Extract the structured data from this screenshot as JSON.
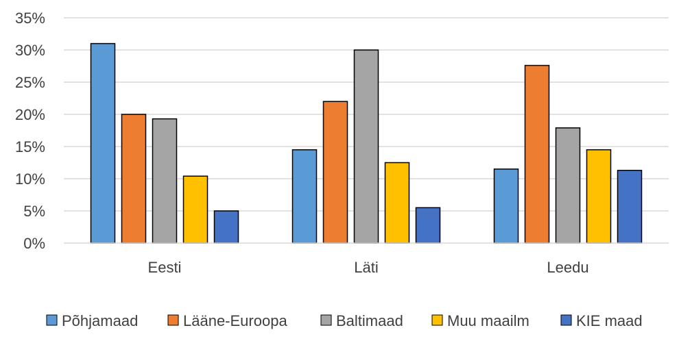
{
  "chart_data": {
    "type": "bar",
    "categories": [
      "Eesti",
      "Läti",
      "Leedu"
    ],
    "series": [
      {
        "name": "Põhjamaad",
        "color": "#5B9BD5",
        "values": [
          0.31,
          0.145,
          0.115
        ]
      },
      {
        "name": "Lääne-Euroopa",
        "color": "#ED7D31",
        "values": [
          0.2,
          0.22,
          0.276
        ]
      },
      {
        "name": "Baltimaad",
        "color": "#A5A5A5",
        "values": [
          0.193,
          0.3,
          0.179
        ]
      },
      {
        "name": "Muu maailm",
        "color": "#FFC000",
        "values": [
          0.104,
          0.125,
          0.145
        ]
      },
      {
        "name": "KIE maad",
        "color": "#4472C4",
        "values": [
          0.05,
          0.055,
          0.113
        ]
      }
    ],
    "ylim": [
      0,
      0.35
    ],
    "yticks": [
      "0%",
      "5%",
      "10%",
      "15%",
      "20%",
      "25%",
      "30%",
      "35%"
    ],
    "grid": true,
    "legend_position": "bottom",
    "title": "",
    "xlabel": "",
    "ylabel": ""
  }
}
